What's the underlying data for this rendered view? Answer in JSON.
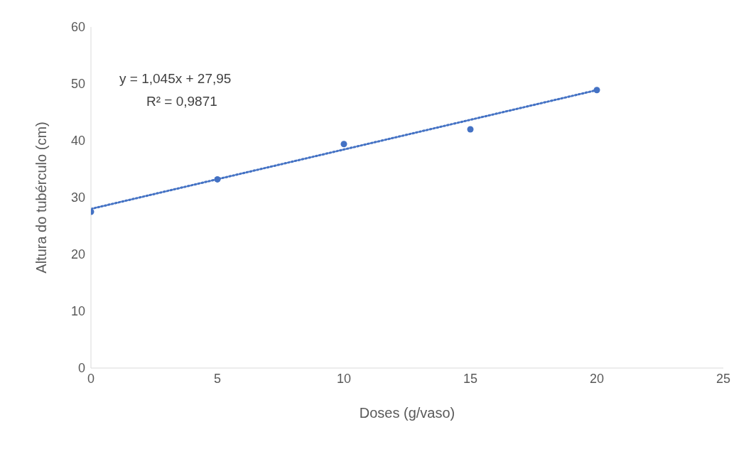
{
  "chart_data": {
    "type": "scatter",
    "xlabel": "Doses (g/vaso)",
    "ylabel": "Altura do tubérculo (cm)",
    "x": [
      0,
      5,
      10,
      15,
      20
    ],
    "series": [
      {
        "color": "#4472c4",
        "values": [
          27.5,
          33.2,
          39.4,
          42.0,
          48.9
        ]
      },
      {
        "type": "line",
        "color": "#4472c4",
        "x": [
          0,
          20
        ],
        "values": [
          28.0,
          48.9
        ],
        "line_style": "dotted",
        "marker": "none"
      }
    ],
    "xlim": [
      0,
      25
    ],
    "xticks": [
      0,
      5,
      10,
      15,
      20,
      25
    ],
    "ylim": [
      0,
      60
    ],
    "yticks": [
      0,
      10,
      20,
      30,
      40,
      50,
      60
    ],
    "grid": false,
    "marker": "circle",
    "annotations": [
      "y = 1,045x + 27,95",
      "R² = 0,9871"
    ]
  }
}
